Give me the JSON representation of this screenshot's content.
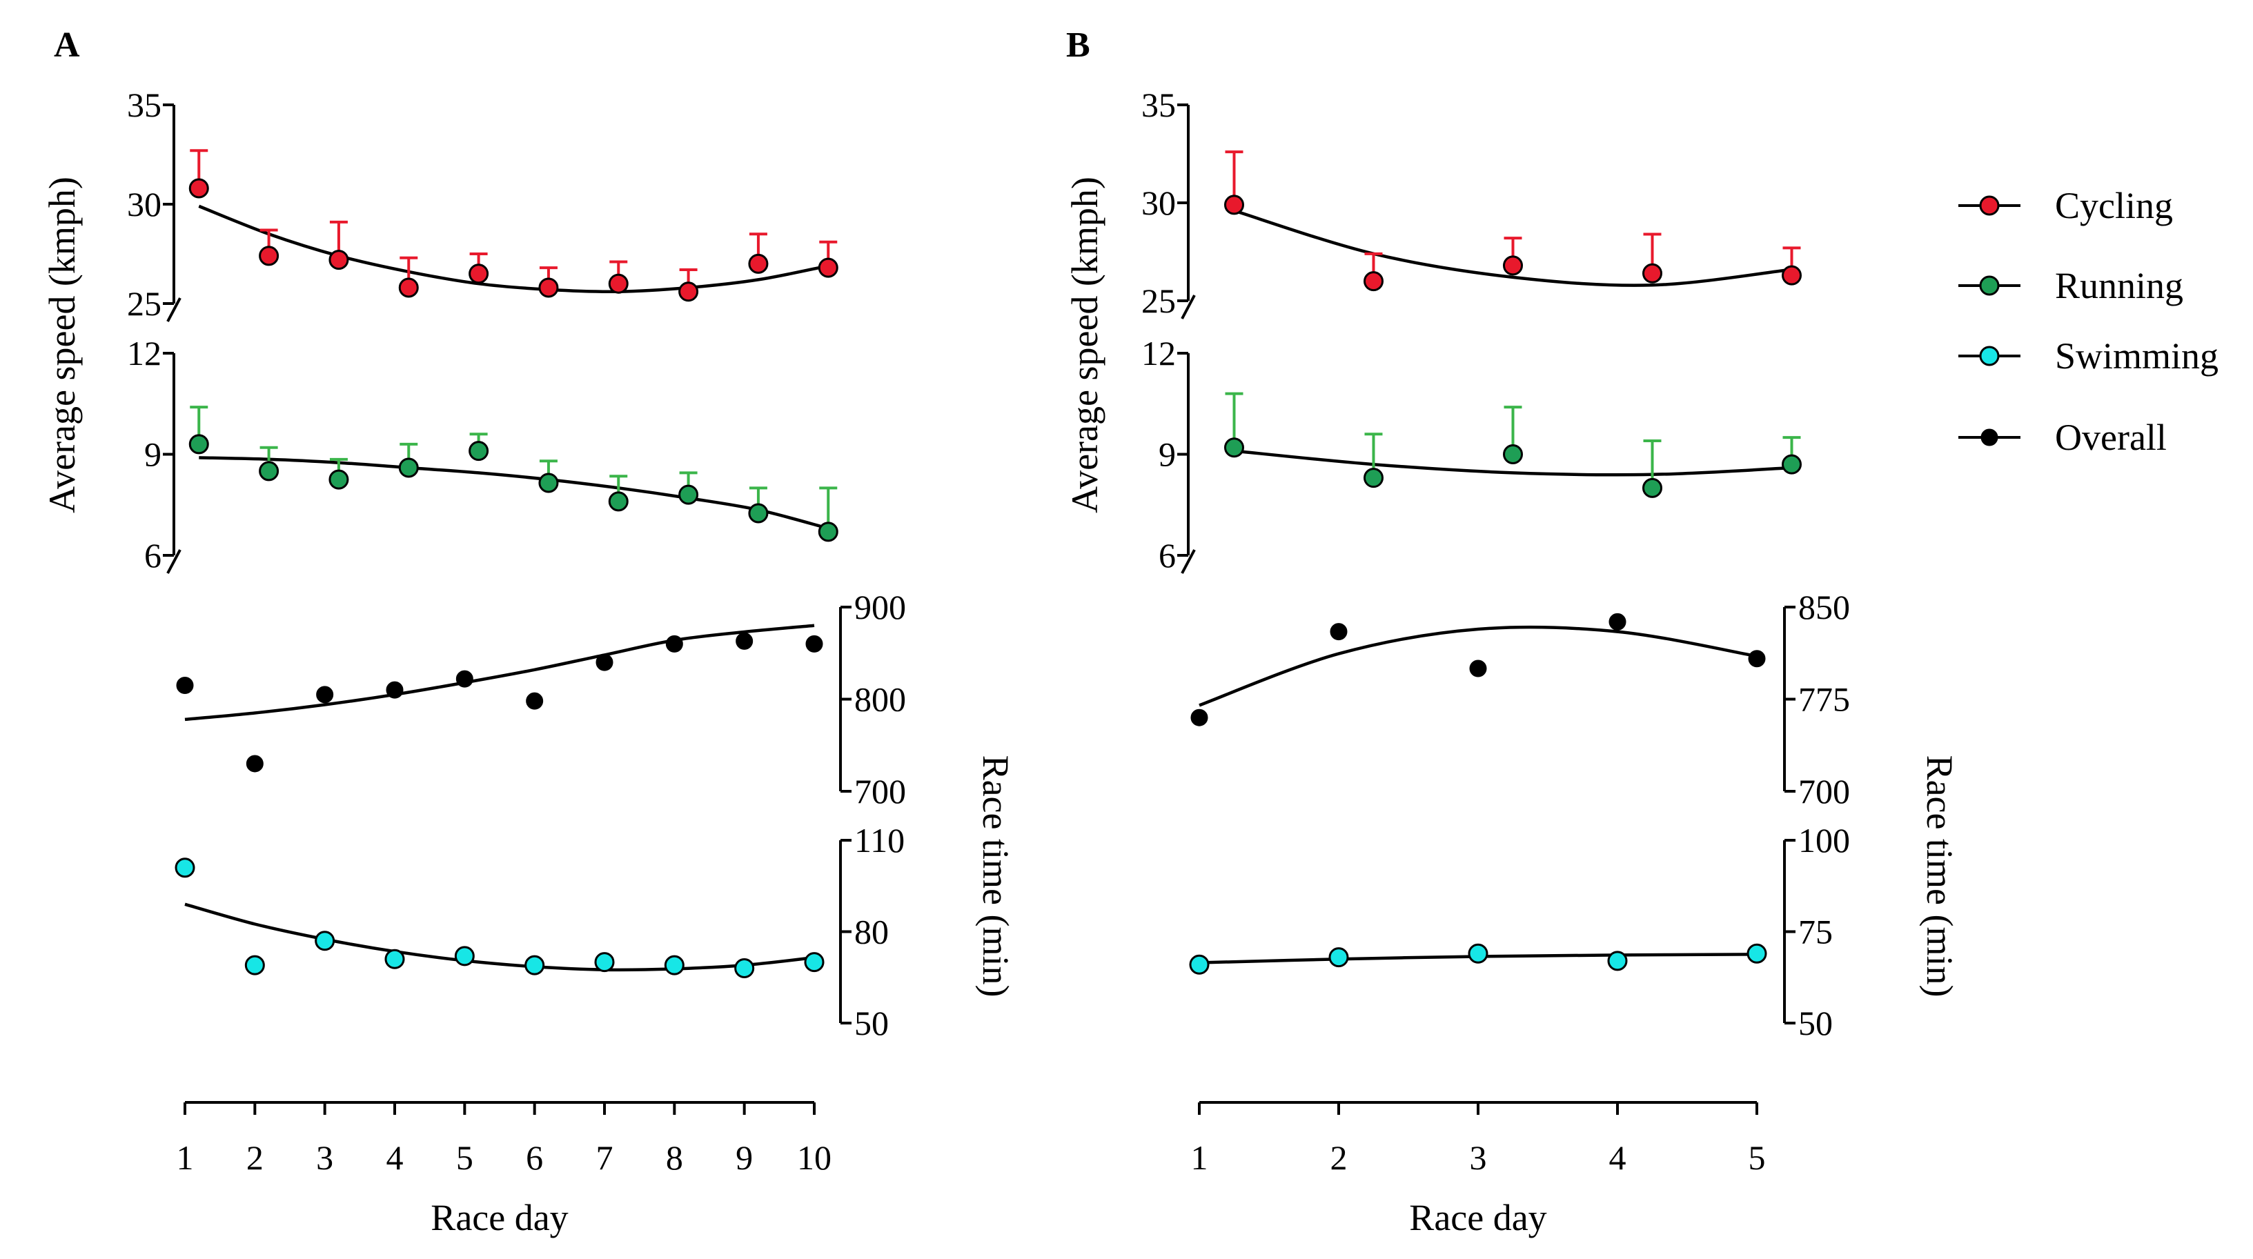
{
  "colors": {
    "cycling": "#e8192c",
    "running": "#1e9e55",
    "running_err": "#3bb54a",
    "swimming": "#17e6e6",
    "overall": "#000000",
    "axis": "#000000"
  },
  "legend": {
    "items": [
      {
        "key": "cycling",
        "label": "Cycling"
      },
      {
        "key": "running",
        "label": "Running"
      },
      {
        "key": "swimming",
        "label": "Swimming"
      },
      {
        "key": "overall",
        "label": "Overall"
      }
    ]
  },
  "chart_data": [
    {
      "panel": "A",
      "type": "scatter",
      "xlabel": "Race day",
      "x_ticks": [
        1,
        2,
        3,
        4,
        5,
        6,
        7,
        8,
        9,
        10
      ],
      "x_range": [
        1,
        10
      ],
      "left_axis_label": "Average speed (kmph)",
      "right_axis_label": "Race time (min)",
      "subplots": {
        "cycling": {
          "ylim": [
            25,
            35
          ],
          "yticks": [
            25,
            30,
            35
          ],
          "x": [
            1.2,
            2.2,
            3.2,
            4.2,
            5.2,
            6.2,
            7.2,
            8.2,
            9.2,
            10.2
          ],
          "values": [
            30.8,
            27.4,
            27.2,
            25.8,
            26.5,
            25.8,
            26.0,
            25.6,
            27.0,
            26.8
          ],
          "err": [
            1.9,
            1.3,
            1.9,
            1.5,
            1.0,
            1.0,
            1.1,
            1.1,
            1.5,
            1.3
          ],
          "fit": [
            29.9,
            28.5,
            27.4,
            26.6,
            26.0,
            25.7,
            25.6,
            25.8,
            26.2,
            26.9
          ]
        },
        "running": {
          "ylim": [
            6,
            12
          ],
          "yticks": [
            6,
            9,
            12
          ],
          "x": [
            1.2,
            2.2,
            3.2,
            4.2,
            5.2,
            6.2,
            7.2,
            8.2,
            9.2,
            10.2
          ],
          "values": [
            9.3,
            8.5,
            8.25,
            8.6,
            9.1,
            8.15,
            7.6,
            7.8,
            7.25,
            6.7
          ],
          "err": [
            1.1,
            0.7,
            0.6,
            0.7,
            0.5,
            0.65,
            0.75,
            0.65,
            0.75,
            1.3
          ],
          "fit": [
            8.9,
            8.85,
            8.75,
            8.6,
            8.45,
            8.25,
            8.0,
            7.7,
            7.35,
            6.8
          ]
        },
        "overall": {
          "ylim": [
            700,
            900
          ],
          "yticks": [
            700,
            800,
            900
          ],
          "x": [
            1,
            2,
            3,
            4,
            5,
            6,
            7,
            8,
            9,
            10
          ],
          "values": [
            815,
            730,
            805,
            810,
            822,
            798,
            840,
            860,
            863,
            860
          ],
          "fit": [
            778,
            785,
            794,
            805,
            818,
            832,
            848,
            864,
            873,
            880
          ]
        },
        "swimming": {
          "ylim": [
            50,
            110
          ],
          "yticks": [
            50,
            80,
            110
          ],
          "x": [
            1,
            2,
            3,
            4,
            5,
            6,
            7,
            8,
            9,
            10
          ],
          "values": [
            101,
            69,
            77,
            71,
            72,
            69,
            70,
            69,
            68,
            70
          ],
          "fit": [
            89,
            82.5,
            77.5,
            73.5,
            70.5,
            68.5,
            67.5,
            67.8,
            69,
            71.5
          ]
        }
      }
    },
    {
      "panel": "B",
      "type": "scatter",
      "xlabel": "Race day",
      "x_ticks": [
        1,
        2,
        3,
        4,
        5
      ],
      "x_range": [
        1,
        5
      ],
      "left_axis_label": "Average speed (kmph)",
      "right_axis_label": "Race time (min)",
      "subplots": {
        "cycling": {
          "ylim": [
            25,
            35
          ],
          "yticks": [
            25,
            30,
            35
          ],
          "x": [
            1.25,
            2.25,
            3.25,
            4.25,
            5.25
          ],
          "values": [
            29.9,
            26.0,
            26.8,
            26.4,
            26.3
          ],
          "err": [
            2.7,
            1.4,
            1.4,
            2.0,
            1.4
          ],
          "fit": [
            29.6,
            27.4,
            26.2,
            25.8,
            26.6
          ]
        },
        "running": {
          "ylim": [
            6,
            12
          ],
          "yticks": [
            6,
            9,
            12
          ],
          "x": [
            1.25,
            2.25,
            3.25,
            4.25,
            5.25
          ],
          "values": [
            9.2,
            8.3,
            9.0,
            8.0,
            8.7
          ],
          "err": [
            1.6,
            1.3,
            1.4,
            1.4,
            0.8
          ],
          "fit": [
            9.1,
            8.7,
            8.45,
            8.4,
            8.6
          ]
        },
        "overall": {
          "ylim": [
            700,
            850
          ],
          "yticks": [
            700,
            775,
            850
          ],
          "x": [
            1,
            2,
            3,
            4,
            5
          ],
          "values": [
            760,
            830,
            800,
            838,
            808
          ],
          "fit": [
            770,
            812,
            832,
            830,
            810
          ]
        },
        "swimming": {
          "ylim": [
            50,
            100
          ],
          "yticks": [
            50,
            75,
            100
          ],
          "x": [
            1,
            2,
            3,
            4,
            5
          ],
          "values": [
            66,
            68,
            69,
            67,
            69
          ],
          "fit": [
            66.5,
            67.5,
            68.2,
            68.6,
            68.8
          ]
        }
      }
    }
  ]
}
